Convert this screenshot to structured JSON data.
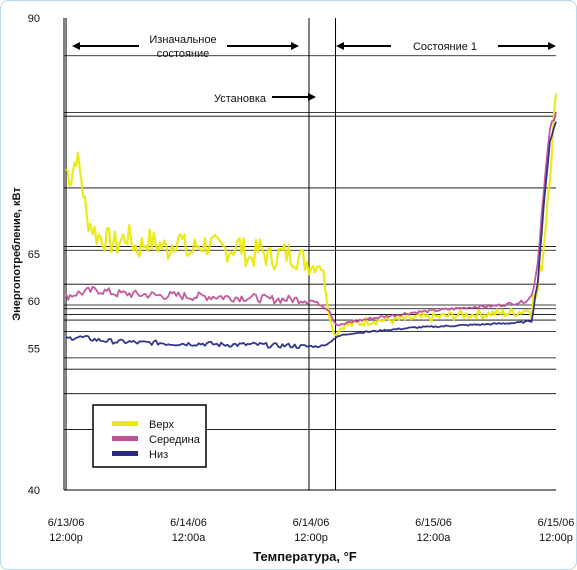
{
  "colors": {
    "Верх": "#eaea10",
    "Середина": "#c0509a",
    "Низ": "#2b2a86",
    "grid": "#000000"
  },
  "chart_data": {
    "type": "line",
    "title": "",
    "xlabel": "Температура, °F",
    "ylabel": "Энергопотребление, кВт",
    "ylim": [
      40,
      90
    ],
    "xlim": [
      -0.2,
      48
    ],
    "y_ticks": [
      {
        "label": "90",
        "value": 90
      },
      {
        "label": "65",
        "value": 65
      },
      {
        "label": "60",
        "value": 60
      },
      {
        "label": "55",
        "value": 55
      },
      {
        "label": "40",
        "value": 40
      }
    ],
    "x_ticks": [
      {
        "line1": "6/13/06",
        "line2": "12:00p",
        "x": 0
      },
      {
        "line1": "6/14/06",
        "line2": "12:00a",
        "x": 12
      },
      {
        "line1": "6/14/06",
        "line2": "12:00p",
        "x": 24
      },
      {
        "line1": "6/15/06",
        "line2": "12:00a",
        "x": 36
      },
      {
        "line1": "6/15/06",
        "line2": "12:00p",
        "x": 48
      }
    ],
    "grid_levels": [
      86,
      80,
      79.6,
      72,
      65.8,
      65.4,
      61.8,
      59.6,
      59.2,
      58.6,
      58,
      56.8,
      54,
      52.8,
      50.2,
      46.4
    ],
    "vertical_markers": [
      0,
      23.8,
      26.4
    ],
    "annotations": {
      "initial_state": "Изначальное состояние",
      "installation": "Установка",
      "state_1": "Состояние 1"
    },
    "legend_position": "lower-left",
    "series": [
      {
        "name": "Верх",
        "x": [
          0,
          0.5,
          1.0,
          1.5,
          2.0,
          3,
          4,
          5,
          6,
          7,
          8,
          9,
          10,
          11,
          12,
          13,
          14,
          15,
          16,
          17,
          18,
          19,
          20,
          21,
          22,
          23,
          24,
          24.4,
          24.8,
          25.2,
          25.6,
          26.0,
          26.4,
          26.8,
          27.2,
          28,
          30,
          32,
          34,
          36,
          38,
          40,
          42,
          44,
          45,
          45.6,
          46.2,
          46.8,
          47.4,
          48
        ],
        "y": [
          74,
          73,
          75.5,
          73,
          69,
          67,
          66.5,
          66,
          67,
          65.5,
          66.5,
          66,
          65.5,
          67,
          65,
          66,
          66,
          65.5,
          65.5,
          66,
          64.5,
          65.5,
          64.5,
          65,
          65,
          64.5,
          64,
          63.5,
          64,
          63,
          60,
          57.5,
          56.5,
          57,
          57.5,
          57.5,
          58,
          58,
          58.2,
          58.3,
          58.5,
          58.6,
          58.7,
          58.8,
          59,
          59.5,
          61,
          66,
          74,
          82
        ]
      },
      {
        "name": "Середина",
        "x": [
          0,
          1,
          2,
          3,
          4,
          5,
          6,
          7,
          8,
          9,
          10,
          11,
          12,
          13,
          14,
          15,
          16,
          17,
          18,
          19,
          20,
          21,
          22,
          23,
          24,
          24.6,
          25.2,
          25.8,
          26.2,
          26.6,
          27,
          28,
          30,
          32,
          34,
          36,
          38,
          40,
          42,
          44,
          45,
          45.6,
          46.2,
          46.8,
          47.4,
          48
        ],
        "y": [
          60.5,
          60.8,
          61,
          61.2,
          61,
          60.8,
          60.8,
          60.7,
          60.7,
          60.6,
          60.6,
          60.6,
          60.5,
          60.5,
          60.5,
          60.5,
          60.4,
          60.4,
          60.4,
          60.3,
          60.2,
          60.2,
          60.2,
          60.2,
          60.1,
          59.8,
          59.5,
          59,
          58,
          57.5,
          57.5,
          57.8,
          58.2,
          58.5,
          58.8,
          59,
          59.2,
          59.4,
          59.5,
          59.8,
          60,
          60.5,
          64,
          72,
          78,
          80
        ]
      },
      {
        "name": "Низ",
        "x": [
          0,
          1,
          2,
          3,
          4,
          5,
          6,
          7,
          8,
          9,
          10,
          11,
          12,
          13,
          14,
          15,
          16,
          17,
          18,
          19,
          20,
          21,
          22,
          23,
          24,
          24.6,
          25.2,
          25.8,
          26.2,
          26.6,
          27,
          28,
          30,
          32,
          34,
          36,
          38,
          40,
          42,
          44,
          45,
          45.6,
          46.2,
          46.8,
          47.4,
          48
        ],
        "y": [
          56,
          56.2,
          56.1,
          55.9,
          55.8,
          55.7,
          55.7,
          55.6,
          55.6,
          55.6,
          55.5,
          55.5,
          55.5,
          55.5,
          55.5,
          55.4,
          55.4,
          55.4,
          55.4,
          55.4,
          55.3,
          55.3,
          55.3,
          55.2,
          55.2,
          55.2,
          55.3,
          55.6,
          56,
          56.2,
          56.4,
          56.6,
          56.8,
          57,
          57.2,
          57.3,
          57.4,
          57.5,
          57.6,
          57.7,
          57.8,
          58,
          62,
          70,
          77,
          79
        ]
      }
    ]
  }
}
